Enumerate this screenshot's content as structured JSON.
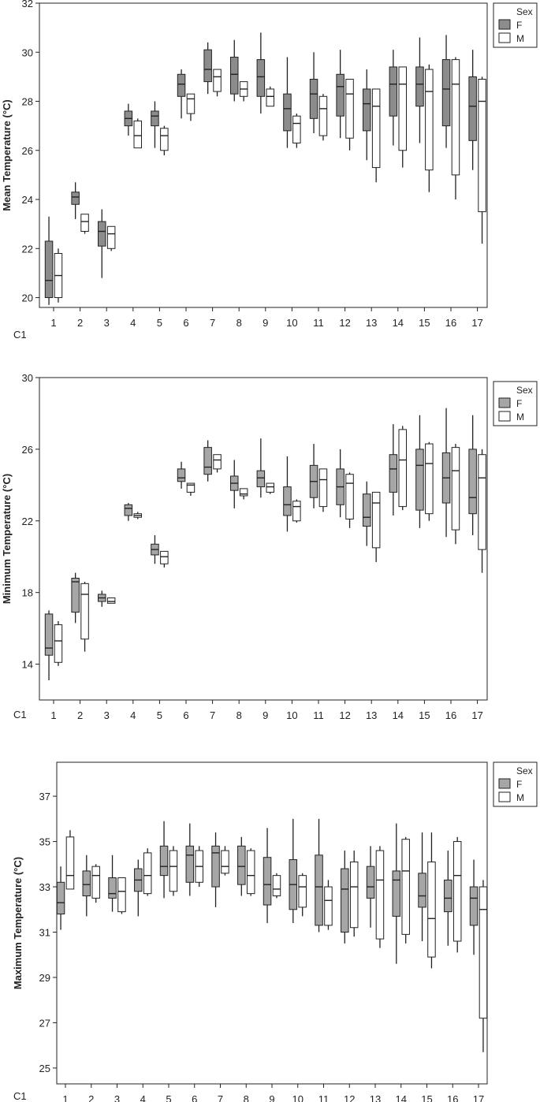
{
  "legend": {
    "title": "Sex",
    "female_label": "F",
    "male_label": "M"
  },
  "colors": {
    "female": "#a6a6a6",
    "male": "#ffffff",
    "stroke": "#222222",
    "axis": "#222222"
  },
  "chart_data": [
    {
      "type": "box",
      "ylabel": "Mean Temperature (°C)",
      "x_label": "C1",
      "categories": [
        "1",
        "2",
        "3",
        "4",
        "5",
        "6",
        "7",
        "8",
        "9",
        "10",
        "11",
        "12",
        "13",
        "14",
        "15",
        "16",
        "17"
      ],
      "yticks": [
        20,
        22,
        24,
        26,
        28,
        30,
        32
      ],
      "ylim": [
        19.6,
        32
      ],
      "female_fill": "#8c8c8c",
      "series": [
        {
          "name": "F",
          "boxes": [
            [
              19.7,
              20.0,
              20.7,
              22.3,
              23.3
            ],
            [
              23.2,
              23.8,
              24.1,
              24.3,
              24.7
            ],
            [
              20.8,
              22.1,
              22.7,
              23.1,
              23.6
            ],
            [
              26.6,
              27.0,
              27.3,
              27.6,
              27.9
            ],
            [
              26.1,
              27.0,
              27.4,
              27.6,
              28.0
            ],
            [
              27.3,
              28.2,
              28.7,
              29.1,
              29.3
            ],
            [
              28.3,
              28.8,
              29.3,
              30.1,
              30.4
            ],
            [
              28.0,
              28.3,
              29.1,
              29.8,
              30.5
            ],
            [
              27.5,
              28.2,
              29.0,
              29.7,
              30.8
            ],
            [
              26.1,
              26.8,
              27.7,
              28.3,
              29.8
            ],
            [
              26.7,
              27.3,
              28.3,
              28.9,
              30.0
            ],
            [
              26.5,
              27.4,
              28.6,
              29.1,
              30.1
            ],
            [
              25.6,
              26.8,
              27.9,
              28.5,
              29.3
            ],
            [
              26.2,
              27.4,
              28.7,
              29.4,
              30.1
            ],
            [
              26.3,
              27.8,
              28.7,
              29.4,
              30.6
            ],
            [
              26.1,
              27.0,
              28.5,
              29.7,
              30.7
            ],
            [
              25.2,
              26.4,
              27.8,
              29.0,
              30.1
            ]
          ]
        },
        {
          "name": "M",
          "boxes": [
            [
              19.8,
              20.0,
              20.9,
              21.8,
              22.0
            ],
            [
              22.6,
              22.7,
              23.1,
              23.4,
              23.4
            ],
            [
              21.9,
              22.0,
              22.6,
              22.9,
              22.9
            ],
            [
              26.1,
              26.1,
              26.6,
              27.2,
              27.3
            ],
            [
              25.8,
              26.0,
              26.6,
              26.9,
              27.0
            ],
            [
              27.2,
              27.5,
              28.1,
              28.3,
              28.3
            ],
            [
              28.2,
              28.4,
              29.0,
              29.3,
              29.3
            ],
            [
              28.0,
              28.2,
              28.5,
              28.8,
              28.8
            ],
            [
              27.8,
              27.8,
              28.2,
              28.5,
              28.6
            ],
            [
              26.1,
              26.3,
              27.1,
              27.4,
              27.5
            ],
            [
              26.4,
              26.6,
              27.7,
              28.2,
              28.3
            ],
            [
              26.0,
              26.5,
              28.3,
              28.9,
              28.9
            ],
            [
              24.7,
              25.3,
              27.8,
              28.5,
              28.5
            ],
            [
              25.3,
              26.0,
              28.7,
              29.4,
              29.4
            ],
            [
              24.3,
              25.2,
              28.4,
              29.3,
              29.5
            ],
            [
              24.0,
              25.0,
              28.7,
              29.7,
              29.8
            ],
            [
              22.2,
              23.5,
              28.0,
              28.9,
              29.0
            ]
          ]
        }
      ]
    },
    {
      "type": "box",
      "ylabel": "Minimum Temperature (°C)",
      "x_label": "C1",
      "categories": [
        "1",
        "2",
        "3",
        "4",
        "5",
        "6",
        "7",
        "8",
        "9",
        "10",
        "11",
        "12",
        "13",
        "14",
        "15",
        "16",
        "17"
      ],
      "yticks": [
        14,
        18,
        22,
        26,
        30
      ],
      "ylim": [
        12,
        30
      ],
      "female_fill": "#a6a6a6",
      "series": [
        {
          "name": "F",
          "boxes": [
            [
              13.1,
              14.5,
              14.9,
              16.8,
              17.0
            ],
            [
              16.3,
              16.9,
              18.6,
              18.8,
              19.1
            ],
            [
              17.2,
              17.5,
              17.7,
              17.9,
              18.1
            ],
            [
              22.0,
              22.3,
              22.7,
              22.9,
              23.0
            ],
            [
              19.6,
              20.1,
              20.4,
              20.7,
              21.2
            ],
            [
              23.8,
              24.2,
              24.4,
              24.9,
              25.3
            ],
            [
              24.2,
              24.6,
              25.0,
              26.1,
              26.5
            ],
            [
              22.7,
              23.7,
              24.1,
              24.5,
              25.4
            ],
            [
              23.3,
              23.9,
              24.4,
              24.8,
              26.6
            ],
            [
              21.4,
              22.3,
              22.9,
              23.9,
              25.6
            ],
            [
              22.7,
              23.3,
              24.2,
              25.1,
              26.3
            ],
            [
              22.2,
              22.9,
              23.9,
              24.9,
              26.0
            ],
            [
              20.6,
              21.7,
              22.2,
              23.5,
              24.2
            ],
            [
              22.3,
              23.6,
              24.9,
              25.7,
              27.4
            ],
            [
              21.6,
              22.6,
              25.1,
              26.0,
              27.9
            ],
            [
              21.1,
              23.0,
              24.4,
              25.8,
              28.3
            ],
            [
              21.2,
              22.4,
              23.3,
              26.0,
              27.9
            ]
          ]
        },
        {
          "name": "M",
          "boxes": [
            [
              13.9,
              14.1,
              15.3,
              16.2,
              16.4
            ],
            [
              14.7,
              15.4,
              17.9,
              18.5,
              18.6
            ],
            [
              17.4,
              17.4,
              17.5,
              17.7,
              17.7
            ],
            [
              22.1,
              22.2,
              22.3,
              22.4,
              22.5
            ],
            [
              19.4,
              19.6,
              20.0,
              20.3,
              20.3
            ],
            [
              23.4,
              23.6,
              24.0,
              24.1,
              24.1
            ],
            [
              24.7,
              24.9,
              25.4,
              25.7,
              25.7
            ],
            [
              23.2,
              23.4,
              23.5,
              23.8,
              23.8
            ],
            [
              23.5,
              23.6,
              23.9,
              24.1,
              24.1
            ],
            [
              21.9,
              22.0,
              22.8,
              23.1,
              23.2
            ],
            [
              22.5,
              22.8,
              24.3,
              24.9,
              24.9
            ],
            [
              21.6,
              22.1,
              24.1,
              24.6,
              24.7
            ],
            [
              19.7,
              20.5,
              23.0,
              23.6,
              23.6
            ],
            [
              22.6,
              22.8,
              25.4,
              27.1,
              27.3
            ],
            [
              22.0,
              22.4,
              25.2,
              26.3,
              26.4
            ],
            [
              20.7,
              21.5,
              24.8,
              26.1,
              26.3
            ],
            [
              19.1,
              20.4,
              24.4,
              25.7,
              26.0
            ]
          ]
        }
      ]
    },
    {
      "type": "box",
      "ylabel": "Maximum Temperature (°C)",
      "x_label": "C1",
      "categories": [
        "1",
        "2",
        "3",
        "4",
        "5",
        "6",
        "7",
        "8",
        "9",
        "10",
        "11",
        "12",
        "13",
        "14",
        "15",
        "16",
        "17"
      ],
      "yticks": [
        25,
        27,
        29,
        31,
        33,
        35,
        37
      ],
      "ylim": [
        24.3,
        38.5
      ],
      "female_fill": "#a6a6a6",
      "series": [
        {
          "name": "F",
          "boxes": [
            [
              31.1,
              31.8,
              32.3,
              33.2,
              33.9
            ],
            [
              31.7,
              32.6,
              33.1,
              33.7,
              34.4
            ],
            [
              31.9,
              32.5,
              32.7,
              33.4,
              34.4
            ],
            [
              31.7,
              32.8,
              33.3,
              33.8,
              34.2
            ],
            [
              32.5,
              33.5,
              33.9,
              34.8,
              35.9
            ],
            [
              32.6,
              33.2,
              34.4,
              34.8,
              35.8
            ],
            [
              32.1,
              33.0,
              34.5,
              34.8,
              35.4
            ],
            [
              32.6,
              33.1,
              33.9,
              34.8,
              35.2
            ],
            [
              31.4,
              32.2,
              33.1,
              34.3,
              35.6
            ],
            [
              31.4,
              32.0,
              33.1,
              34.2,
              36.0
            ],
            [
              31.0,
              31.3,
              33.0,
              34.4,
              36.0
            ],
            [
              30.5,
              31.0,
              32.9,
              33.8,
              34.6
            ],
            [
              31.2,
              32.5,
              33.0,
              33.9,
              34.8
            ],
            [
              29.6,
              31.7,
              33.3,
              33.7,
              35.8
            ],
            [
              30.6,
              32.1,
              32.6,
              33.6,
              35.4
            ],
            [
              30.4,
              31.9,
              32.5,
              33.3,
              34.6
            ],
            [
              30.0,
              31.3,
              32.5,
              33.0,
              34.2
            ]
          ]
        },
        {
          "name": "M",
          "boxes": [
            [
              32.9,
              32.9,
              33.5,
              35.2,
              35.5
            ],
            [
              32.3,
              32.5,
              33.5,
              33.9,
              34.0
            ],
            [
              31.8,
              31.9,
              32.8,
              33.4,
              33.4
            ],
            [
              32.6,
              32.7,
              33.5,
              34.5,
              34.7
            ],
            [
              32.6,
              32.8,
              33.9,
              34.6,
              34.8
            ],
            [
              33.0,
              33.2,
              33.9,
              34.6,
              34.8
            ],
            [
              33.5,
              33.6,
              33.9,
              34.6,
              34.8
            ],
            [
              32.6,
              32.7,
              33.5,
              34.6,
              34.7
            ],
            [
              32.5,
              32.6,
              32.9,
              33.5,
              33.6
            ],
            [
              31.7,
              32.1,
              33.0,
              33.5,
              33.6
            ],
            [
              31.1,
              31.3,
              32.4,
              33.0,
              33.3
            ],
            [
              30.8,
              31.2,
              33.0,
              34.1,
              34.6
            ],
            [
              30.3,
              30.7,
              33.3,
              34.6,
              34.8
            ],
            [
              30.5,
              30.9,
              33.7,
              35.1,
              35.2
            ],
            [
              29.4,
              29.9,
              31.6,
              34.1,
              35.4
            ],
            [
              30.1,
              30.6,
              33.5,
              35.0,
              35.2
            ],
            [
              25.7,
              27.2,
              32.0,
              33.0,
              33.3
            ]
          ]
        }
      ]
    }
  ]
}
